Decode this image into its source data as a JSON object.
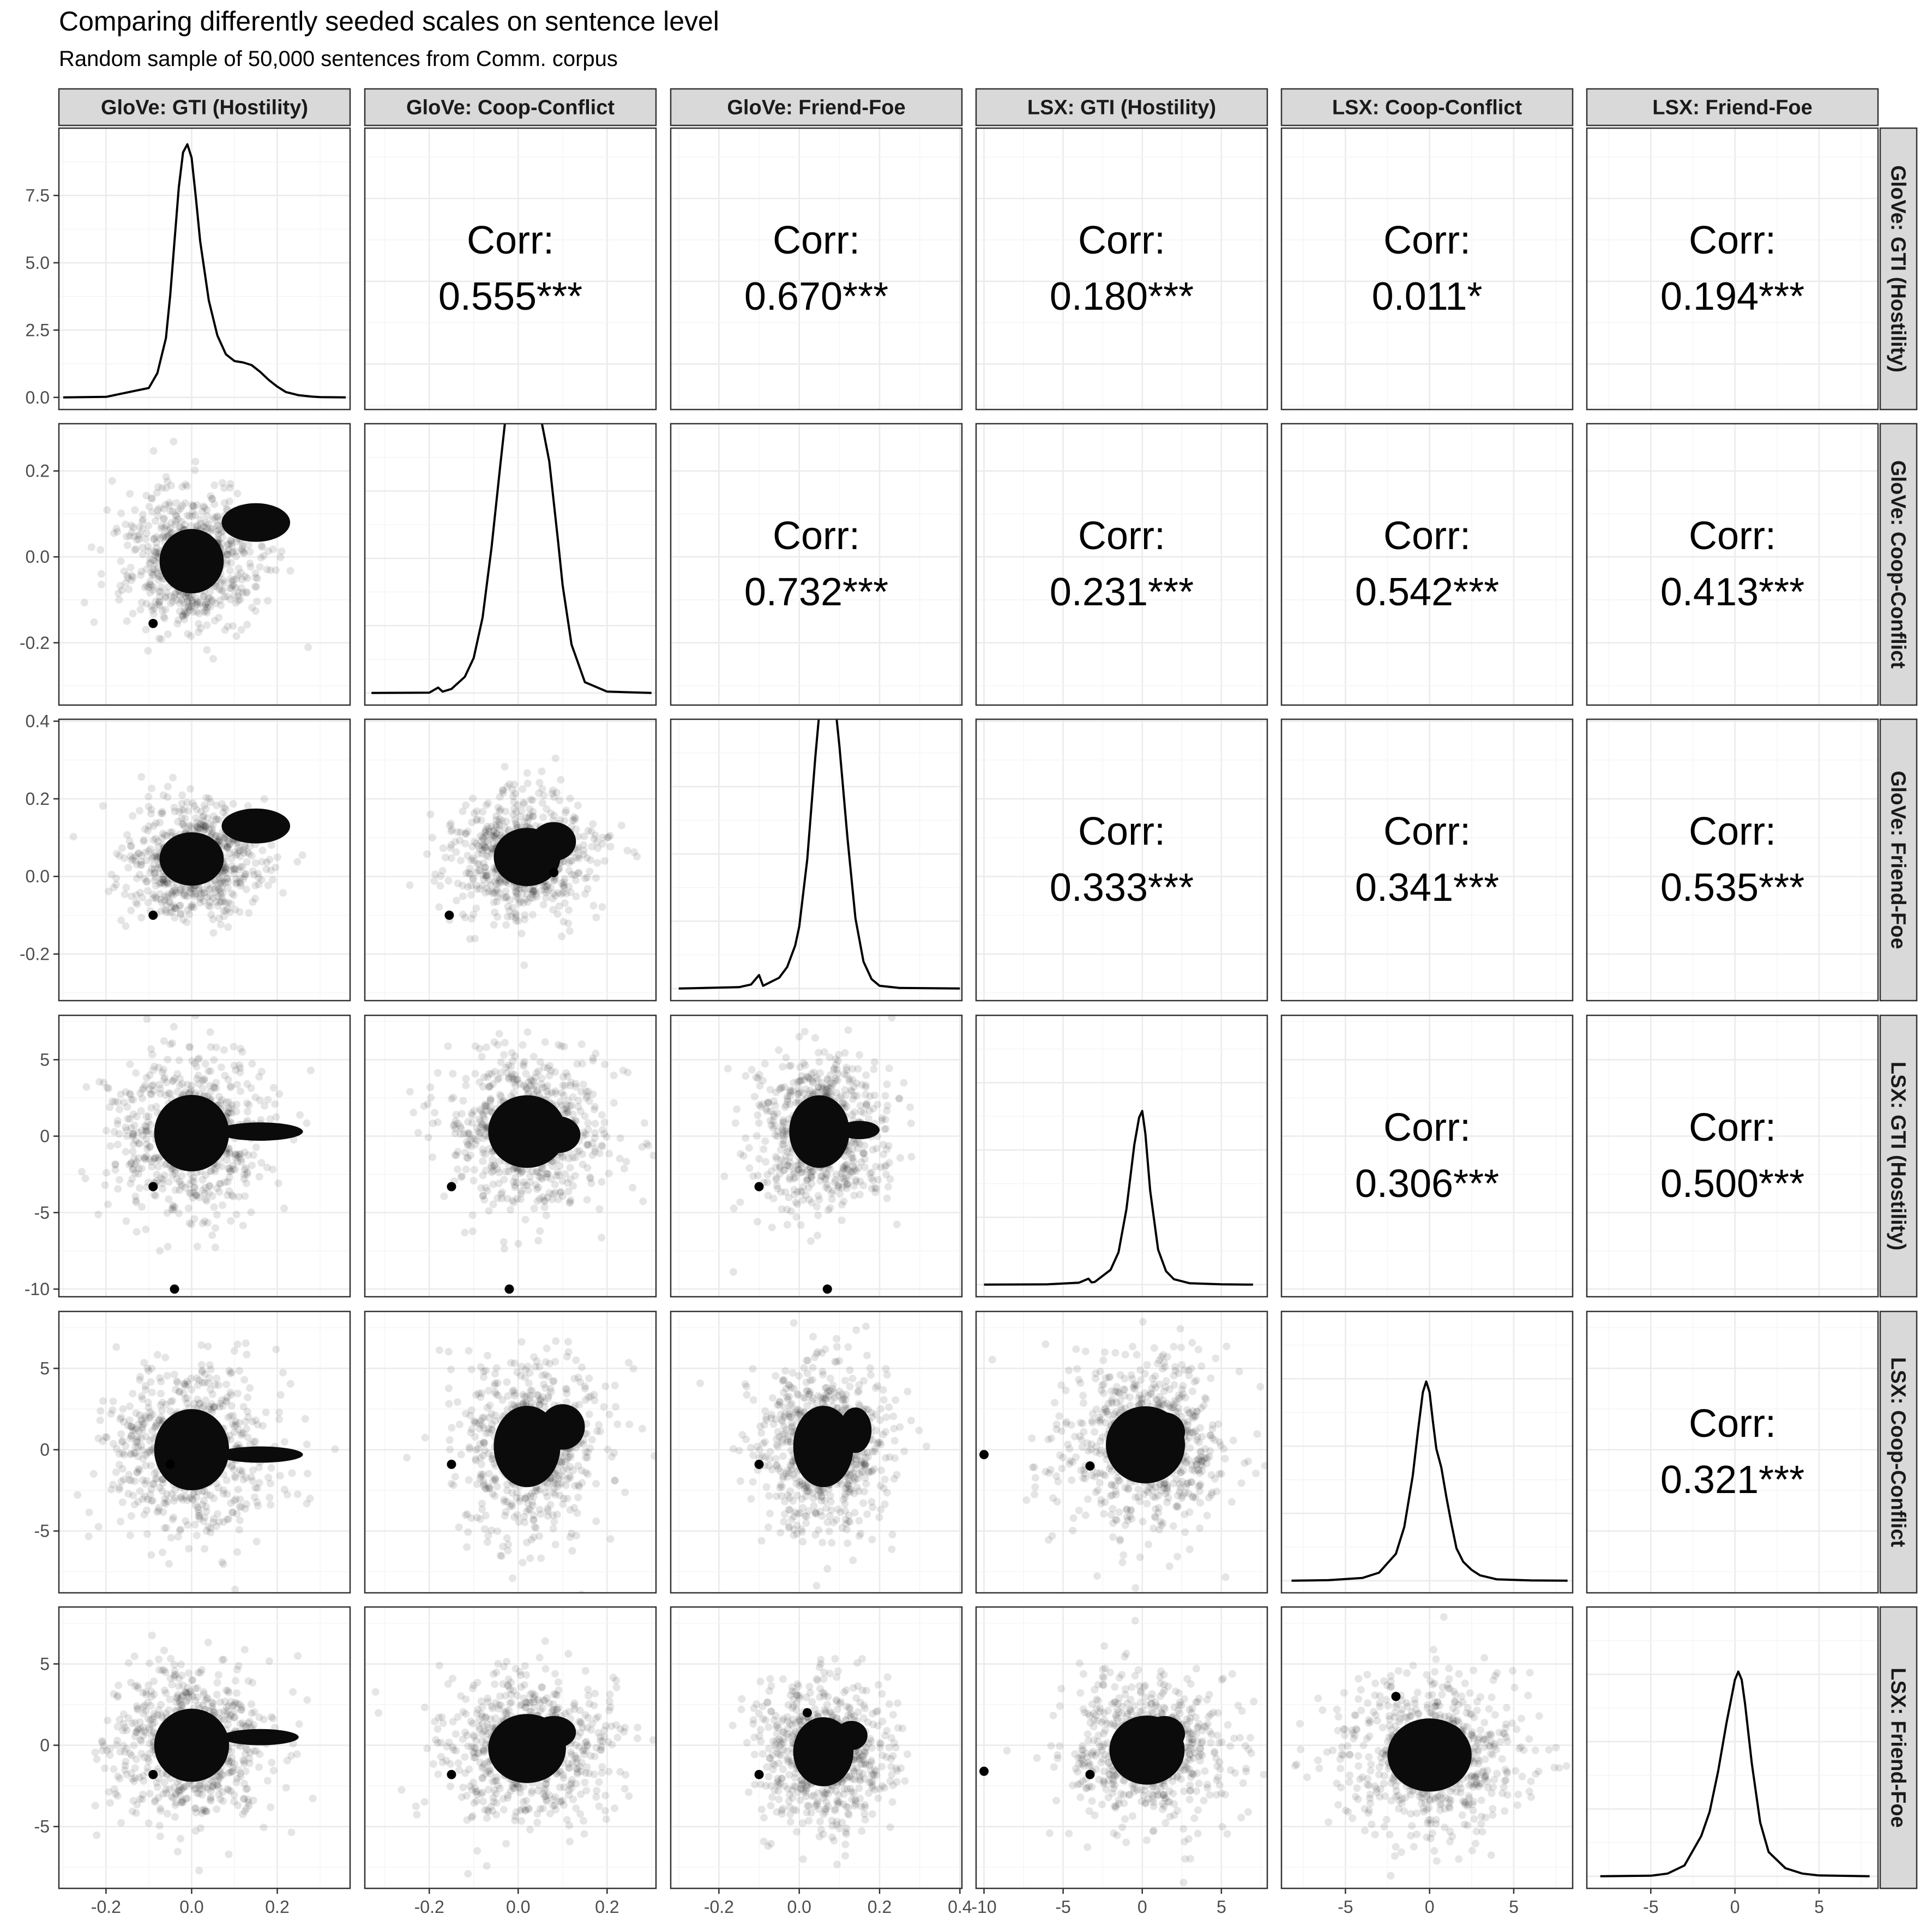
{
  "title": "Comparing differently seeded scales on sentence level",
  "subtitle": "Random sample of 50,000 sentences from Comm. corpus",
  "chart_data": {
    "type": "scatter",
    "variables": [
      {
        "key": "glove_gti",
        "label": "GloVe: GTI (Hostility)",
        "range": [
          -0.31,
          0.37
        ],
        "ticks": [
          -0.2,
          0.0,
          0.2
        ],
        "tick_labels": [
          "-0.2",
          "0.0",
          "0.2"
        ]
      },
      {
        "key": "glove_cc",
        "label": "GloVe: Coop-Conflict",
        "range": [
          -0.345,
          0.31
        ],
        "ticks": [
          -0.2,
          0.0,
          0.2
        ],
        "tick_labels": [
          "-0.2",
          "0.0",
          "0.2"
        ]
      },
      {
        "key": "glove_ff",
        "label": "GloVe: Friend-Foe",
        "range": [
          -0.32,
          0.405
        ],
        "ticks": [
          -0.2,
          0.0,
          0.2,
          0.4
        ],
        "tick_labels": [
          "-0.2",
          "0.0",
          "0.2",
          "0.4"
        ]
      },
      {
        "key": "lsx_gti",
        "label": "LSX: GTI (Hostility)",
        "range": [
          -10.5,
          7.9
        ],
        "ticks": [
          -10,
          -5,
          0,
          5
        ],
        "tick_labels": [
          "-10",
          "-5",
          "0",
          "5"
        ]
      },
      {
        "key": "lsx_cc",
        "label": "LSX: Coop-Conflict",
        "range": [
          -8.8,
          8.5
        ],
        "ticks": [
          -5,
          0,
          5
        ],
        "tick_labels": [
          "-5",
          "0",
          "5"
        ]
      },
      {
        "key": "lsx_ff",
        "label": "LSX: Friend-Foe",
        "range": [
          -8.8,
          8.5
        ],
        "ticks": [
          -5,
          0,
          5
        ],
        "tick_labels": [
          "-5",
          "0",
          "5"
        ]
      }
    ],
    "diag_y_axis": {
      "range": [
        -0.45,
        10.0
      ],
      "ticks": [
        0.0,
        2.5,
        5.0,
        7.5
      ],
      "tick_labels": [
        "0.0",
        "2.5",
        "5.0",
        "7.5"
      ]
    },
    "correlations": [
      {
        "row": 0,
        "col": 1,
        "label": "Corr:",
        "value": "0.555***"
      },
      {
        "row": 0,
        "col": 2,
        "label": "Corr:",
        "value": "0.670***"
      },
      {
        "row": 0,
        "col": 3,
        "label": "Corr:",
        "value": "0.180***"
      },
      {
        "row": 0,
        "col": 4,
        "label": "Corr:",
        "value": "0.011*"
      },
      {
        "row": 0,
        "col": 5,
        "label": "Corr:",
        "value": "0.194***"
      },
      {
        "row": 1,
        "col": 2,
        "label": "Corr:",
        "value": "0.732***"
      },
      {
        "row": 1,
        "col": 3,
        "label": "Corr:",
        "value": "0.231***"
      },
      {
        "row": 1,
        "col": 4,
        "label": "Corr:",
        "value": "0.542***"
      },
      {
        "row": 1,
        "col": 5,
        "label": "Corr:",
        "value": "0.413***"
      },
      {
        "row": 2,
        "col": 3,
        "label": "Corr:",
        "value": "0.333***"
      },
      {
        "row": 2,
        "col": 4,
        "label": "Corr:",
        "value": "0.341***"
      },
      {
        "row": 2,
        "col": 5,
        "label": "Corr:",
        "value": "0.535***"
      },
      {
        "row": 3,
        "col": 4,
        "label": "Corr:",
        "value": "0.306***"
      },
      {
        "row": 3,
        "col": 5,
        "label": "Corr:",
        "value": "0.500***"
      },
      {
        "row": 4,
        "col": 5,
        "label": "Corr:",
        "value": "0.321***"
      }
    ],
    "densities": [
      {
        "variable": "glove_gti",
        "x": [
          -0.3,
          -0.2,
          -0.1,
          -0.08,
          -0.06,
          -0.05,
          -0.04,
          -0.03,
          -0.02,
          -0.01,
          0.0,
          0.01,
          0.02,
          0.04,
          0.06,
          0.08,
          0.1,
          0.12,
          0.14,
          0.16,
          0.18,
          0.2,
          0.22,
          0.25,
          0.28,
          0.3,
          0.36
        ],
        "y": [
          0.0,
          0.02,
          0.35,
          0.9,
          2.2,
          3.8,
          5.8,
          7.8,
          9.1,
          9.4,
          8.9,
          7.4,
          5.8,
          3.6,
          2.3,
          1.6,
          1.35,
          1.3,
          1.2,
          0.95,
          0.65,
          0.4,
          0.2,
          0.08,
          0.03,
          0.01,
          0.0
        ]
      },
      {
        "variable": "glove_cc",
        "x": [
          -0.33,
          -0.2,
          -0.18,
          -0.17,
          -0.15,
          -0.12,
          -0.1,
          -0.08,
          -0.06,
          -0.04,
          -0.02,
          0.0,
          0.01,
          0.02,
          0.03,
          0.05,
          0.07,
          0.09,
          0.1,
          0.12,
          0.15,
          0.2,
          0.3
        ],
        "y": [
          0.0,
          0.01,
          0.2,
          0.05,
          0.15,
          0.6,
          1.3,
          2.8,
          5.4,
          8.5,
          11.5,
          13.4,
          13.9,
          13.3,
          11.9,
          10.3,
          8.6,
          5.6,
          4.0,
          1.8,
          0.4,
          0.05,
          0.0
        ]
      },
      {
        "variable": "glove_ff",
        "x": [
          -0.3,
          -0.15,
          -0.12,
          -0.1,
          -0.09,
          -0.05,
          -0.03,
          -0.01,
          0.0,
          0.02,
          0.04,
          0.06,
          0.07,
          0.08,
          0.1,
          0.12,
          0.14,
          0.16,
          0.18,
          0.2,
          0.25,
          0.4
        ],
        "y": [
          0.0,
          0.05,
          0.15,
          0.5,
          0.1,
          0.4,
          0.8,
          1.6,
          2.3,
          4.8,
          8.6,
          11.9,
          12.3,
          11.9,
          9.0,
          5.6,
          2.6,
          1.0,
          0.35,
          0.1,
          0.02,
          0.0
        ]
      },
      {
        "variable": "lsx_gti",
        "x": [
          -10.0,
          -6.0,
          -4.0,
          -3.4,
          -3.2,
          -3.0,
          -2.0,
          -1.5,
          -1.0,
          -0.5,
          -0.2,
          0.0,
          0.2,
          0.5,
          1.0,
          1.5,
          2.0,
          3.0,
          5.0,
          7.0
        ],
        "y": [
          0.0,
          0.01,
          0.07,
          0.22,
          0.08,
          0.1,
          0.55,
          1.2,
          2.8,
          5.2,
          6.2,
          6.45,
          5.6,
          3.5,
          1.3,
          0.5,
          0.2,
          0.05,
          0.01,
          0.0
        ]
      },
      {
        "variable": "lsx_cc",
        "x": [
          -8.2,
          -6.0,
          -4.0,
          -3.0,
          -2.0,
          -1.5,
          -1.0,
          -0.7,
          -0.4,
          -0.2,
          0.0,
          0.2,
          0.4,
          0.7,
          1.0,
          1.3,
          1.6,
          2.0,
          2.5,
          3.0,
          4.0,
          6.0,
          8.2
        ],
        "y": [
          0.0,
          0.02,
          0.1,
          0.3,
          1.0,
          2.0,
          3.9,
          5.5,
          7.0,
          7.4,
          7.0,
          5.9,
          4.9,
          4.2,
          3.1,
          2.1,
          1.2,
          0.7,
          0.4,
          0.2,
          0.05,
          0.01,
          0.0
        ]
      },
      {
        "variable": "lsx_ff",
        "x": [
          -8.0,
          -5.0,
          -4.0,
          -3.0,
          -2.0,
          -1.5,
          -1.0,
          -0.5,
          0.0,
          0.2,
          0.4,
          0.6,
          1.0,
          1.5,
          2.0,
          3.0,
          4.0,
          5.0,
          8.0
        ],
        "y": [
          0.0,
          0.02,
          0.1,
          0.4,
          1.5,
          2.4,
          3.9,
          5.7,
          7.3,
          7.6,
          7.3,
          6.4,
          4.2,
          2.0,
          0.9,
          0.3,
          0.1,
          0.03,
          0.0
        ]
      }
    ],
    "scatter_summary": [
      {
        "row": 1,
        "col": 0,
        "center": [
          0.0,
          -0.01
        ],
        "spread": [
          0.06,
          0.06
        ],
        "extra": [
          [
            0.15,
            0.08,
            0.08,
            0.045
          ]
        ],
        "outliers": [
          [
            -0.09,
            -0.155
          ]
        ]
      },
      {
        "row": 2,
        "col": 0,
        "center": [
          0.0,
          0.045
        ],
        "spread": [
          0.06,
          0.055
        ],
        "extra": [
          [
            0.15,
            0.13,
            0.08,
            0.045
          ]
        ],
        "outliers": [
          [
            -0.09,
            -0.1
          ]
        ]
      },
      {
        "row": 2,
        "col": 1,
        "center": [
          0.02,
          0.05
        ],
        "spread": [
          0.06,
          0.06
        ],
        "extra": [
          [
            0.08,
            0.09,
            0.05,
            0.05
          ]
        ],
        "outliers": [
          [
            -0.155,
            -0.1
          ],
          [
            0.08,
            0.01
          ]
        ]
      },
      {
        "row": 3,
        "col": 0,
        "center": [
          0.0,
          0.2
        ],
        "spread": [
          0.07,
          2.0
        ],
        "extra": [
          [
            0.16,
            0.3,
            0.1,
            0.6
          ]
        ],
        "outliers": [
          [
            -0.09,
            -3.3
          ],
          [
            -0.04,
            -10.0
          ]
        ]
      },
      {
        "row": 3,
        "col": 1,
        "center": [
          0.02,
          0.3
        ],
        "spread": [
          0.07,
          1.9
        ],
        "extra": [
          [
            0.09,
            0.1,
            0.05,
            1.2
          ]
        ],
        "outliers": [
          [
            -0.15,
            -3.3
          ],
          [
            -0.02,
            -10.0
          ]
        ]
      },
      {
        "row": 3,
        "col": 2,
        "center": [
          0.05,
          0.3
        ],
        "spread": [
          0.06,
          1.9
        ],
        "extra": [
          [
            0.15,
            0.4,
            0.05,
            0.6
          ]
        ],
        "outliers": [
          [
            -0.1,
            -3.3
          ],
          [
            0.07,
            -10.0
          ]
        ]
      },
      {
        "row": 4,
        "col": 0,
        "center": [
          0.0,
          0.0
        ],
        "spread": [
          0.07,
          2.0
        ],
        "extra": [
          [
            0.16,
            -0.3,
            0.1,
            0.5
          ]
        ],
        "outliers": [
          [
            -0.05,
            -0.9
          ]
        ]
      },
      {
        "row": 4,
        "col": 1,
        "center": [
          0.02,
          0.2
        ],
        "spread": [
          0.06,
          2.0
        ],
        "extra": [
          [
            0.1,
            1.4,
            0.05,
            1.4
          ]
        ],
        "outliers": [
          [
            -0.15,
            -0.9
          ]
        ]
      },
      {
        "row": 4,
        "col": 2,
        "center": [
          0.06,
          0.2
        ],
        "spread": [
          0.06,
          2.0
        ],
        "extra": [
          [
            0.14,
            1.2,
            0.04,
            1.4
          ]
        ],
        "outliers": [
          [
            -0.1,
            -0.9
          ]
        ]
      },
      {
        "row": 4,
        "col": 3,
        "center": [
          0.2,
          0.3
        ],
        "spread": [
          2.0,
          1.9
        ],
        "extra": [
          [
            1.4,
            1.1,
            1.3,
            1.2
          ]
        ],
        "outliers": [
          [
            -10.0,
            -0.3
          ],
          [
            -3.3,
            -1.0
          ]
        ]
      },
      {
        "row": 5,
        "col": 0,
        "center": [
          0.0,
          0.0
        ],
        "spread": [
          0.07,
          1.8
        ],
        "extra": [
          [
            0.16,
            0.5,
            0.09,
            0.5
          ]
        ],
        "outliers": [
          [
            -0.09,
            -1.8
          ]
        ]
      },
      {
        "row": 5,
        "col": 1,
        "center": [
          0.02,
          -0.2
        ],
        "spread": [
          0.07,
          1.7
        ],
        "extra": [
          [
            0.08,
            0.8,
            0.05,
            1.0
          ]
        ],
        "outliers": [
          [
            -0.15,
            -1.8
          ]
        ]
      },
      {
        "row": 5,
        "col": 2,
        "center": [
          0.06,
          -0.4
        ],
        "spread": [
          0.06,
          1.7
        ],
        "extra": [
          [
            0.13,
            0.6,
            0.04,
            0.9
          ]
        ],
        "outliers": [
          [
            -0.1,
            -1.8
          ],
          [
            0.02,
            2.0
          ]
        ]
      },
      {
        "row": 5,
        "col": 3,
        "center": [
          0.3,
          -0.3
        ],
        "spread": [
          1.9,
          1.7
        ],
        "extra": [
          [
            1.4,
            0.7,
            1.3,
            1.1
          ]
        ],
        "outliers": [
          [
            -10.0,
            -1.6
          ],
          [
            -3.3,
            -1.8
          ]
        ]
      },
      {
        "row": 5,
        "col": 4,
        "center": [
          0.0,
          -0.6
        ],
        "spread": [
          2.0,
          1.8
        ],
        "extra": [
          [
            0.8,
            0.3,
            1.3,
            1.1
          ]
        ],
        "outliers": [
          [
            -2.0,
            3.0
          ]
        ]
      }
    ]
  }
}
